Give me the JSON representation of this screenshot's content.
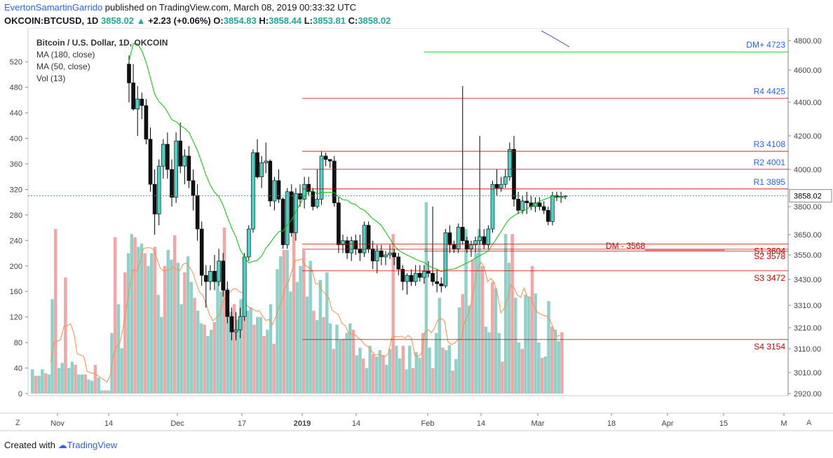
{
  "header": {
    "author": "EvertonSamartinGarrido",
    "published": " published on TradingView.com, March 08, 2019 00:33:32 UTC",
    "symbol": "OKCOIN:BTCUSD, 1D ",
    "last": "3858.02",
    "arrow": "▲",
    "change": " +2.23 (+0.06%) ",
    "o_label": "O:",
    "o": "3854.83",
    "h_label": " H:",
    "h": "3858.44",
    "l_label": " L:",
    "l": "3853.81",
    "c_label": " C:",
    "c": "3858.02"
  },
  "legend": {
    "title": "Bitcoin / U.S. Dollar, 1D, OKCOIN",
    "ma180": "MA (180, close)",
    "ma50": "MA (50, close)",
    "vol": "Vol (13)"
  },
  "footer": {
    "created": "Created with ",
    "brand": "TradingView"
  },
  "corners": {
    "left": "Z",
    "right": "A"
  },
  "colors": {
    "up": "#26a69a",
    "down": "#000000",
    "vol_up": "#8fd1c8",
    "vol_down": "#f4a5a5",
    "ma50": "#00c800",
    "ma180": "#3949ab",
    "vol_ma": "#ff8c42",
    "resistance": "#d50000",
    "support": "#d50000",
    "dm_plus": "#00c800",
    "label_blue": "#2962ff"
  },
  "chart_data": {
    "type": "candlestick",
    "title": "Bitcoin / U.S. Dollar, 1D, OKCOIN",
    "price_axis": {
      "ticks": [
        "4800.00",
        "4600.00",
        "4400.00",
        "4200.00",
        "4000.00",
        "3800.00",
        "3650.00",
        "3550.00",
        "3430.00",
        "3310.00",
        "3210.00",
        "3110.00",
        "3010.00",
        "2920.00"
      ],
      "current": "3858.02"
    },
    "volume_axis": {
      "ticks": [
        "520",
        "480",
        "440",
        "400",
        "360",
        "320",
        "280",
        "240",
        "200",
        "160",
        "120",
        "80",
        "40",
        "0"
      ],
      "ylim": [
        0,
        540
      ]
    },
    "x_axis": {
      "ticks": [
        "Nov",
        "14",
        "Dec",
        "17",
        "2019",
        "14",
        "Feb",
        "14",
        "Mar",
        "18",
        "Apr",
        "15",
        "M"
      ]
    },
    "levels": [
      {
        "label": "DM+",
        "value": "4723",
        "color": "#00c800"
      },
      {
        "label": "R4",
        "value": "4425",
        "color": "#d50000"
      },
      {
        "label": "R3",
        "value": "4108",
        "color": "#d50000"
      },
      {
        "label": "R2",
        "value": "4001",
        "color": "#d50000"
      },
      {
        "label": "R1",
        "value": "3895",
        "color": "#d50000"
      },
      {
        "label": "S1",
        "value": "3604",
        "color": "#d50000"
      },
      {
        "label": "S2",
        "value": "3578",
        "color": "#d50000"
      },
      {
        "label": "DM -",
        "value": "3568",
        "color": "#d50000"
      },
      {
        "label": "S3",
        "value": "3472",
        "color": "#d50000"
      },
      {
        "label": "S4",
        "value": "3154",
        "color": "#d50000"
      }
    ],
    "candles": [
      [
        4640,
        4900,
        4400,
        4520
      ],
      [
        4520,
        4640,
        4350,
        4360
      ],
      [
        4360,
        4500,
        4200,
        4420
      ],
      [
        4420,
        4460,
        4300,
        4380
      ],
      [
        4380,
        4420,
        4150,
        4180
      ],
      [
        4180,
        4250,
        3880,
        3920
      ],
      [
        3920,
        4000,
        3650,
        3760
      ],
      [
        3760,
        4060,
        3700,
        4020
      ],
      [
        4020,
        4180,
        3950,
        4150
      ],
      [
        4150,
        4220,
        3950,
        4000
      ],
      [
        4000,
        4060,
        3800,
        3850
      ],
      [
        3850,
        4220,
        3820,
        4170
      ],
      [
        4170,
        4280,
        3980,
        4020
      ],
      [
        4020,
        4120,
        3920,
        4080
      ],
      [
        4080,
        4140,
        3900,
        3940
      ],
      [
        3940,
        4000,
        3780,
        3860
      ],
      [
        3860,
        3920,
        3620,
        3680
      ],
      [
        3680,
        3720,
        3400,
        3450
      ],
      [
        3450,
        3500,
        3300,
        3420
      ],
      [
        3420,
        3500,
        3380,
        3470
      ],
      [
        3470,
        3550,
        3380,
        3420
      ],
      [
        3420,
        3580,
        3400,
        3520
      ],
      [
        3520,
        3560,
        3350,
        3380
      ],
      [
        3380,
        3420,
        3230,
        3260
      ],
      [
        3260,
        3300,
        3150,
        3190
      ],
      [
        3190,
        3280,
        3150,
        3200
      ],
      [
        3200,
        3300,
        3160,
        3260
      ],
      [
        3260,
        3560,
        3240,
        3540
      ],
      [
        3540,
        3700,
        3520,
        3680
      ],
      [
        3680,
        4120,
        3660,
        4100
      ],
      [
        4100,
        4180,
        3950,
        3960
      ],
      [
        3960,
        4080,
        3900,
        4040
      ],
      [
        4040,
        4160,
        3980,
        4050
      ],
      [
        4050,
        4060,
        3800,
        3830
      ],
      [
        3830,
        3960,
        3780,
        3940
      ],
      [
        3940,
        4000,
        3820,
        3840
      ],
      [
        3840,
        3850,
        3580,
        3600
      ],
      [
        3600,
        3900,
        3580,
        3880
      ],
      [
        3880,
        3920,
        3640,
        3660
      ],
      [
        3660,
        3900,
        3620,
        3870
      ],
      [
        3870,
        3920,
        3800,
        3840
      ],
      [
        3840,
        3960,
        3790,
        3920
      ],
      [
        3920,
        3960,
        3860,
        3880
      ],
      [
        3880,
        3900,
        3780,
        3800
      ],
      [
        3800,
        4000,
        3790,
        3840
      ],
      [
        3840,
        4110,
        3810,
        4080
      ],
      [
        4080,
        4100,
        4020,
        4060
      ],
      [
        4060,
        4060,
        4010,
        4050
      ],
      [
        4050,
        4080,
        3800,
        3820
      ],
      [
        3820,
        3850,
        3560,
        3600
      ],
      [
        3600,
        3650,
        3560,
        3620
      ],
      [
        3620,
        3640,
        3530,
        3560
      ],
      [
        3560,
        3640,
        3520,
        3620
      ],
      [
        3620,
        3650,
        3550,
        3580
      ],
      [
        3580,
        3650,
        3520,
        3560
      ],
      [
        3560,
        3720,
        3540,
        3700
      ],
      [
        3700,
        3720,
        3560,
        3580
      ],
      [
        3580,
        3620,
        3480,
        3520
      ],
      [
        3520,
        3600,
        3460,
        3570
      ],
      [
        3570,
        3600,
        3500,
        3540
      ],
      [
        3540,
        3570,
        3500,
        3550
      ],
      [
        3550,
        3600,
        3530,
        3560
      ],
      [
        3560,
        3580,
        3500,
        3540
      ],
      [
        3540,
        3560,
        3450,
        3480
      ],
      [
        3480,
        3500,
        3380,
        3420
      ],
      [
        3420,
        3460,
        3360,
        3450
      ],
      [
        3450,
        3480,
        3400,
        3420
      ],
      [
        3420,
        3500,
        3400,
        3460
      ],
      [
        3460,
        3500,
        3420,
        3440
      ],
      [
        3440,
        3500,
        3410,
        3470
      ],
      [
        3470,
        3520,
        3440,
        3460
      ],
      [
        3460,
        3800,
        3400,
        3420
      ],
      [
        3420,
        3480,
        3370,
        3410
      ],
      [
        3410,
        3440,
        3370,
        3400
      ],
      [
        3400,
        3680,
        3390,
        3660
      ],
      [
        3660,
        3700,
        3560,
        3600
      ],
      [
        3600,
        3620,
        3560,
        3580
      ],
      [
        3580,
        3710,
        3560,
        3690
      ],
      [
        3690,
        4500,
        3600,
        3620
      ],
      [
        3620,
        3640,
        3560,
        3580
      ],
      [
        3580,
        3620,
        3540,
        3600
      ],
      [
        3600,
        3640,
        3560,
        3620
      ],
      [
        3620,
        4200,
        3600,
        3640
      ],
      [
        3640,
        3680,
        3580,
        3600
      ],
      [
        3600,
        3700,
        3580,
        3680
      ],
      [
        3680,
        3940,
        3660,
        3920
      ],
      [
        3920,
        4000,
        3860,
        3900
      ],
      [
        3900,
        3960,
        3880,
        3920
      ],
      [
        3920,
        4000,
        3900,
        3960
      ],
      [
        3960,
        4160,
        3940,
        4120
      ],
      [
        4120,
        4200,
        3800,
        3840
      ],
      [
        3840,
        3880,
        3760,
        3780
      ],
      [
        3780,
        3860,
        3760,
        3830
      ],
      [
        3830,
        3880,
        3760,
        3820
      ],
      [
        3820,
        3860,
        3780,
        3800
      ],
      [
        3800,
        3850,
        3770,
        3820
      ],
      [
        3820,
        3850,
        3780,
        3800
      ],
      [
        3800,
        3830,
        3760,
        3780
      ],
      [
        3780,
        3800,
        3700,
        3720
      ],
      [
        3720,
        3880,
        3700,
        3860
      ],
      [
        3860,
        3880,
        3830,
        3850
      ],
      [
        3850,
        3880,
        3820,
        3855
      ],
      [
        3855,
        3860,
        3840,
        3858
      ]
    ],
    "volume": [
      38,
      28,
      28,
      38,
      32,
      30,
      148,
      258,
      40,
      48,
      182,
      40,
      50,
      45,
      30,
      30,
      30,
      22,
      20,
      45,
      25,
      5,
      5,
      5,
      95,
      245,
      140,
      71,
      190,
      220,
      250,
      245,
      230,
      235,
      220,
      200,
      220,
      230,
      155,
      120,
      200,
      225,
      210,
      248,
      205,
      140,
      190,
      215,
      175,
      150,
      130,
      110,
      108,
      90,
      100,
      112,
      180,
      160,
      260,
      165,
      128,
      140,
      116,
      148,
      148,
      130,
      135,
      108,
      120,
      120,
      90,
      100,
      140,
      78,
      195,
      215,
      225,
      225,
      160,
      265,
      175,
      200,
      225,
      152,
      208,
      130,
      115,
      178,
      120,
      190,
      110,
      70,
      108,
      85,
      86,
      95,
      110,
      100,
      60,
      72,
      55,
      40,
      75,
      62,
      58,
      68,
      60,
      45,
      70,
      250,
      75,
      55,
      75,
      38,
      75,
      40,
      65,
      56,
      95,
      300,
      72,
      40,
      95,
      150,
      72,
      68,
      76,
      36,
      54,
      135,
      156,
      258,
      138,
      210,
      220,
      258,
      200,
      105,
      96,
      175,
      165,
      95,
      50,
      250,
      205,
      250,
      150,
      80,
      70,
      155,
      152,
      200,
      157,
      80,
      56,
      58,
      145,
      105,
      100,
      82,
      96
    ],
    "series": [
      {
        "name": "MA (50, close)",
        "color": "#00c800"
      },
      {
        "name": "MA (180, close)",
        "color": "#3949ab"
      }
    ]
  }
}
